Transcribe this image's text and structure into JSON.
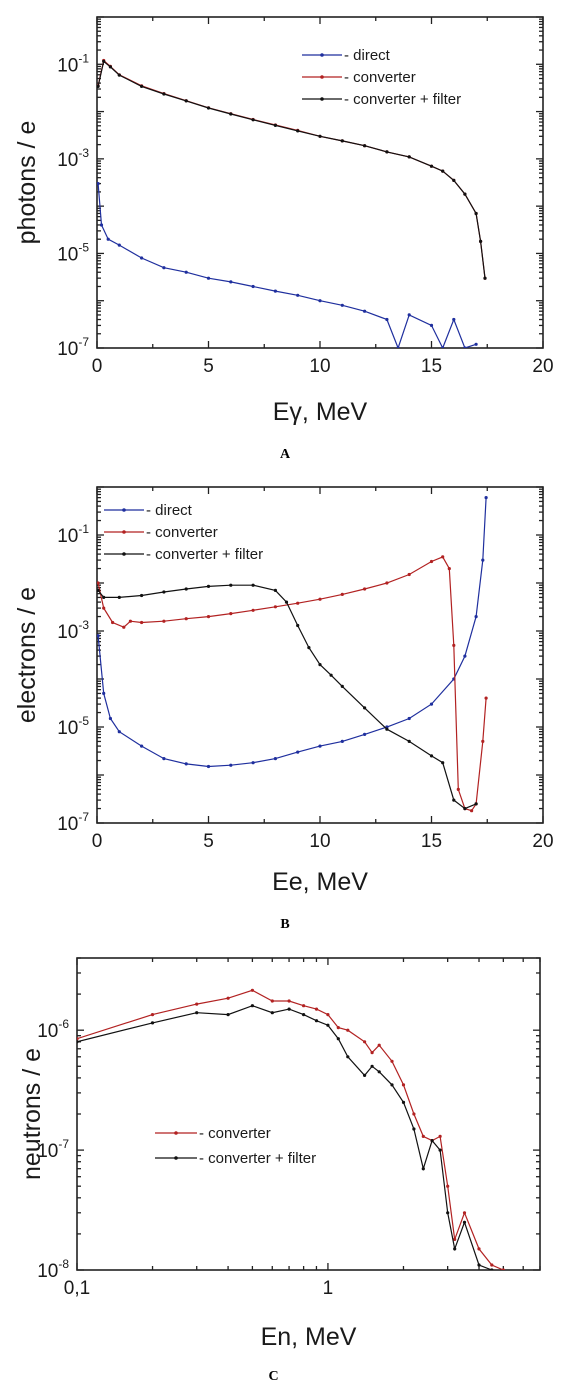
{
  "chart_data": [
    {
      "panel": "A",
      "type": "line",
      "xlabel": "Eγ, MeV",
      "ylabel": "photons / e",
      "xscale": "linear",
      "yscale": "log",
      "xlim": [
        0,
        20
      ],
      "ylim": [
        1e-07,
        1
      ],
      "xticks": [
        "0",
        "5",
        "10",
        "15",
        "20"
      ],
      "yticks": [
        {
          "base": "10",
          "exp": "-7"
        },
        {
          "base": "10",
          "exp": "-5"
        },
        {
          "base": "10",
          "exp": "-3"
        },
        {
          "base": "10",
          "exp": "-1"
        }
      ],
      "legend_position": "top-right",
      "series": [
        {
          "name": "- direct",
          "color": "#1f2f9e",
          "x": [
            0.05,
            0.2,
            0.5,
            1,
            2,
            3,
            4,
            5,
            6,
            7,
            8,
            9,
            10,
            11,
            12,
            13,
            13.5,
            14,
            15,
            15.5,
            16,
            16.5,
            17
          ],
          "y": [
            0.0003,
            4e-05,
            2e-05,
            1.5e-05,
            8e-06,
            5e-06,
            4e-06,
            3e-06,
            2.5e-06,
            2e-06,
            1.6e-06,
            1.3e-06,
            1e-06,
            8e-07,
            6e-07,
            4e-07,
            1e-07,
            5e-07,
            3e-07,
            1e-07,
            4e-07,
            1e-07,
            1.2e-07
          ]
        },
        {
          "name": "- converter",
          "color": "#b22222",
          "x": [
            0.05,
            0.3,
            0.6,
            1,
            2,
            3,
            4,
            5,
            6,
            7,
            8,
            9,
            10,
            11,
            12,
            13,
            14,
            15,
            15.5,
            16,
            16.5,
            17,
            17.2,
            17.4
          ],
          "y": [
            0.035,
            0.12,
            0.09,
            0.06,
            0.035,
            0.024,
            0.017,
            0.012,
            0.009,
            0.0068,
            0.0052,
            0.004,
            0.003,
            0.0024,
            0.0019,
            0.0014,
            0.0011,
            0.0007,
            0.00055,
            0.00035,
            0.00018,
            7e-05,
            1.8e-05,
            3e-06
          ]
        },
        {
          "name": "- converter + filter",
          "color": "#111111",
          "x": [
            0.05,
            0.3,
            0.6,
            1,
            2,
            3,
            4,
            5,
            6,
            7,
            8,
            9,
            10,
            11,
            12,
            13,
            14,
            15,
            15.5,
            16,
            16.5,
            17,
            17.2,
            17.4
          ],
          "y": [
            0.034,
            0.115,
            0.088,
            0.059,
            0.034,
            0.0235,
            0.0168,
            0.0119,
            0.0089,
            0.0067,
            0.0051,
            0.0039,
            0.003,
            0.0024,
            0.0019,
            0.0014,
            0.0011,
            0.0007,
            0.00055,
            0.00035,
            0.00018,
            7e-05,
            1.8e-05,
            3e-06
          ]
        }
      ]
    },
    {
      "panel": "B",
      "type": "line",
      "xlabel": "Ee, MeV",
      "ylabel": "electrons / e",
      "xscale": "linear",
      "yscale": "log",
      "xlim": [
        0,
        20
      ],
      "ylim": [
        1e-07,
        1
      ],
      "xticks": [
        "0",
        "5",
        "10",
        "15",
        "20"
      ],
      "yticks": [
        {
          "base": "10",
          "exp": "-7"
        },
        {
          "base": "10",
          "exp": "-5"
        },
        {
          "base": "10",
          "exp": "-3"
        },
        {
          "base": "10",
          "exp": "-1"
        }
      ],
      "legend_position": "top-left",
      "series": [
        {
          "name": "- direct",
          "color": "#1f2f9e",
          "x": [
            0.05,
            0.3,
            0.6,
            1,
            2,
            3,
            4,
            5,
            6,
            7,
            8,
            9,
            10,
            11,
            12,
            13,
            14,
            15,
            16,
            16.5,
            17,
            17.3,
            17.45
          ],
          "y": [
            0.0008,
            5e-05,
            1.5e-05,
            8e-06,
            4e-06,
            2.2e-06,
            1.7e-06,
            1.5e-06,
            1.6e-06,
            1.8e-06,
            2.2e-06,
            3e-06,
            4e-06,
            5e-06,
            7e-06,
            1e-05,
            1.5e-05,
            3e-05,
            0.0001,
            0.0003,
            0.002,
            0.03,
            0.6
          ]
        },
        {
          "name": "- converter",
          "color": "#b22222",
          "x": [
            0.05,
            0.3,
            0.7,
            1.2,
            1.5,
            2,
            3,
            4,
            5,
            6,
            7,
            8,
            9,
            10,
            11,
            12,
            13,
            14,
            15,
            15.5,
            15.8,
            16,
            16.2,
            16.5,
            16.8,
            17,
            17.3,
            17.45
          ],
          "y": [
            0.01,
            0.003,
            0.0015,
            0.0012,
            0.0016,
            0.0015,
            0.0016,
            0.0018,
            0.002,
            0.0023,
            0.0027,
            0.0032,
            0.0038,
            0.0046,
            0.0058,
            0.0075,
            0.01,
            0.015,
            0.028,
            0.035,
            0.02,
            0.0005,
            5e-07,
            2e-07,
            1.8e-07,
            2.5e-07,
            5e-06,
            4e-05
          ]
        },
        {
          "name": "- converter + filter",
          "color": "#111111",
          "x": [
            0.05,
            0.3,
            1,
            2,
            3,
            4,
            5,
            6,
            7,
            8,
            8.5,
            9,
            9.5,
            10,
            10.5,
            11,
            12,
            13,
            14,
            15,
            15.5,
            16,
            16.5,
            17
          ],
          "y": [
            0.007,
            0.005,
            0.005,
            0.0055,
            0.0065,
            0.0075,
            0.0085,
            0.009,
            0.009,
            0.007,
            0.004,
            0.0013,
            0.00045,
            0.0002,
            0.00012,
            7e-05,
            2.5e-05,
            9e-06,
            5e-06,
            2.5e-06,
            1.8e-06,
            3e-07,
            2e-07,
            2.5e-07
          ]
        }
      ]
    },
    {
      "panel": "C",
      "type": "line",
      "xlabel": "En, MeV",
      "ylabel": "neutrons / e",
      "xscale": "log",
      "yscale": "log",
      "xlim": [
        0.1,
        7
      ],
      "ylim": [
        1e-08,
        4e-06
      ],
      "xticks": [
        "0,1",
        "1"
      ],
      "yticks": [
        {
          "base": "10",
          "exp": "-8"
        },
        {
          "base": "10",
          "exp": "-7"
        },
        {
          "base": "10",
          "exp": "-6"
        }
      ],
      "legend_position": "lower-left",
      "series": [
        {
          "name": "- converter",
          "color": "#b22222",
          "x": [
            0.1,
            0.2,
            0.3,
            0.4,
            0.5,
            0.6,
            0.7,
            0.8,
            0.9,
            1.0,
            1.1,
            1.2,
            1.4,
            1.5,
            1.6,
            1.8,
            2.0,
            2.2,
            2.4,
            2.6,
            2.8,
            3.0,
            3.2,
            3.5,
            4.0,
            4.5,
            5.0
          ],
          "y": [
            8.5e-07,
            1.35e-06,
            1.65e-06,
            1.85e-06,
            2.15e-06,
            1.75e-06,
            1.75e-06,
            1.6e-06,
            1.5e-06,
            1.35e-06,
            1.05e-06,
            1e-06,
            8e-07,
            6.5e-07,
            7.5e-07,
            5.5e-07,
            3.5e-07,
            2e-07,
            1.3e-07,
            1.2e-07,
            1.3e-07,
            5e-08,
            1.8e-08,
            3e-08,
            1.5e-08,
            1.1e-08,
            1e-08
          ]
        },
        {
          "name": "- converter + filter",
          "color": "#111111",
          "x": [
            0.1,
            0.2,
            0.3,
            0.4,
            0.5,
            0.6,
            0.7,
            0.8,
            0.9,
            1.0,
            1.1,
            1.2,
            1.4,
            1.5,
            1.6,
            1.8,
            2.0,
            2.2,
            2.4,
            2.6,
            2.8,
            3.0,
            3.2,
            3.5,
            4.0,
            4.5
          ],
          "y": [
            8e-07,
            1.15e-06,
            1.4e-06,
            1.35e-06,
            1.6e-06,
            1.4e-06,
            1.5e-06,
            1.35e-06,
            1.2e-06,
            1.1e-06,
            8.5e-07,
            6e-07,
            4.2e-07,
            5e-07,
            4.5e-07,
            3.5e-07,
            2.5e-07,
            1.5e-07,
            7e-08,
            1.2e-07,
            1e-07,
            3e-08,
            1.5e-08,
            2.5e-08,
            1.1e-08,
            1e-08
          ]
        }
      ]
    }
  ]
}
